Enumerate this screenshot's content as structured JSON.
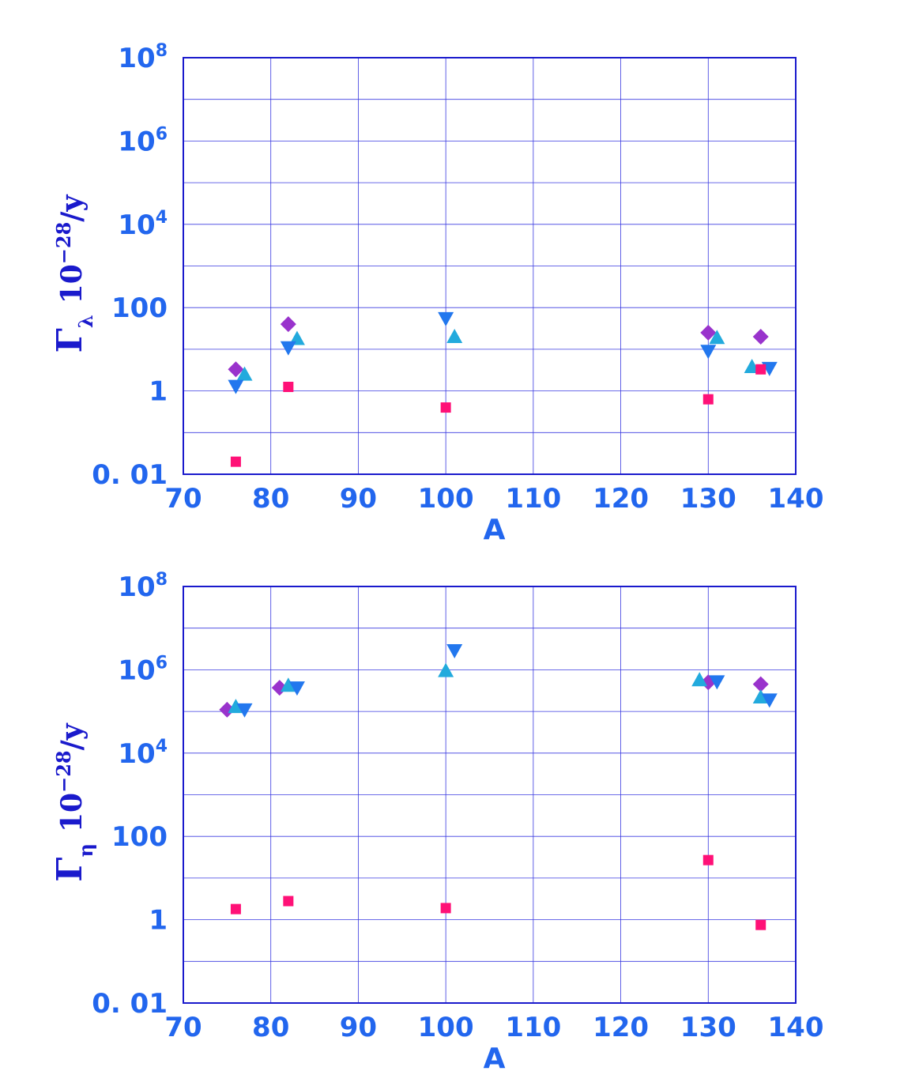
{
  "colors": {
    "frame": "#1a1acc",
    "grid": "#3a3ae0",
    "label": "#2266ee",
    "diamond": "#9933cc",
    "up_triangle": "#22aadd",
    "down_triangle": "#2277ee",
    "square": "#ff1177"
  },
  "chart_data": [
    {
      "type": "scatter",
      "xlabel": "A",
      "ylabel": {
        "symbol": "Γ",
        "subscript": "λ",
        "unit_base": "10",
        "unit_exp": "−28",
        "unit_tail": "/y"
      },
      "x_ticks": [
        "70",
        "80",
        "90",
        "100",
        "110",
        "120",
        "130",
        "140"
      ],
      "y_ticks": [
        {
          "base": "10",
          "exp": "8"
        },
        {
          "base": "10",
          "exp": "6"
        },
        {
          "base": "10",
          "exp": "4"
        },
        {
          "base": "100",
          "exp": ""
        },
        {
          "base": "1",
          "exp": ""
        },
        {
          "base": "0. 01",
          "exp": ""
        }
      ],
      "xlim": [
        70,
        140
      ],
      "ylim": [
        0.01,
        100000000
      ],
      "yscale": "log",
      "grid": true,
      "series": [
        {
          "marker": "diamond",
          "color_key": "diamond",
          "points": [
            [
              76,
              3.3
            ],
            [
              82,
              40
            ],
            [
              130,
              25
            ],
            [
              136,
              20
            ]
          ]
        },
        {
          "marker": "up_triangle",
          "color_key": "up_triangle",
          "points": [
            [
              77,
              2.5
            ],
            [
              83,
              18
            ],
            [
              101,
              20
            ],
            [
              131,
              19
            ],
            [
              135,
              3.8
            ]
          ]
        },
        {
          "marker": "down_triangle",
          "color_key": "down_triangle",
          "points": [
            [
              76,
              1.3
            ],
            [
              82,
              11
            ],
            [
              100,
              55
            ],
            [
              130,
              9
            ],
            [
              137,
              3.5
            ]
          ]
        },
        {
          "marker": "square",
          "color_key": "square",
          "points": [
            [
              76,
              0.02
            ],
            [
              82,
              1.25
            ],
            [
              100,
              0.4
            ],
            [
              130,
              0.63
            ],
            [
              136,
              3.3
            ]
          ]
        }
      ]
    },
    {
      "type": "scatter",
      "xlabel": "A",
      "ylabel": {
        "symbol": "Γ",
        "subscript": "η",
        "unit_base": "10",
        "unit_exp": "−28",
        "unit_tail": "/y"
      },
      "x_ticks": [
        "70",
        "80",
        "90",
        "100",
        "110",
        "120",
        "130",
        "140"
      ],
      "y_ticks": [
        {
          "base": "10",
          "exp": "8"
        },
        {
          "base": "10",
          "exp": "6"
        },
        {
          "base": "10",
          "exp": "4"
        },
        {
          "base": "100",
          "exp": ""
        },
        {
          "base": "1",
          "exp": ""
        },
        {
          "base": "0. 01",
          "exp": ""
        }
      ],
      "xlim": [
        70,
        140
      ],
      "ylim": [
        0.01,
        100000000
      ],
      "yscale": "log",
      "grid": true,
      "series": [
        {
          "marker": "diamond",
          "color_key": "diamond",
          "points": [
            [
              75,
              110000
            ],
            [
              81,
              370000
            ],
            [
              130,
              500000
            ],
            [
              136,
              450000
            ]
          ]
        },
        {
          "marker": "up_triangle",
          "color_key": "up_triangle",
          "points": [
            [
              76,
              130000
            ],
            [
              82,
              420000
            ],
            [
              100,
              950000
            ],
            [
              129,
              570000
            ],
            [
              136,
              220000
            ]
          ]
        },
        {
          "marker": "down_triangle",
          "color_key": "down_triangle",
          "points": [
            [
              77,
              110000
            ],
            [
              83,
              370000
            ],
            [
              101,
              2900000
            ],
            [
              131,
              520000
            ],
            [
              137,
              190000
            ]
          ]
        },
        {
          "marker": "square",
          "color_key": "square",
          "points": [
            [
              76,
              1.8
            ],
            [
              82,
              2.8
            ],
            [
              100,
              1.9
            ],
            [
              130,
              27
            ],
            [
              136,
              0.75
            ]
          ]
        }
      ]
    }
  ]
}
